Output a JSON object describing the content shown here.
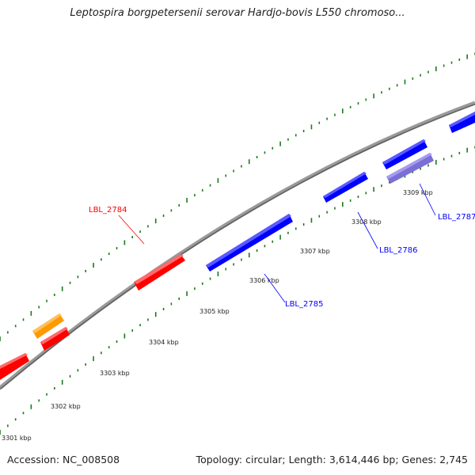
{
  "title": "Leptospira borgpetersenii serovar Hardjo-bovis L550 chromoso...",
  "ticks": [
    "3301 kbp",
    "3302 kbp",
    "3303 kbp",
    "3304 kbp",
    "3305 kbp",
    "3306 kbp",
    "3307 kbp",
    "3308 kbp",
    "3309 kbp"
  ],
  "genes": [
    {
      "label": "LBL_2784",
      "color": "#ff0000",
      "strand": "+"
    },
    {
      "label": "LBL_2785",
      "color": "#0000ff",
      "strand": "-"
    },
    {
      "label": "LBL_2786",
      "color": "#0000ff",
      "strand": "-"
    },
    {
      "label": "LBL_2787",
      "color": "#0000ff",
      "strand": "-"
    }
  ],
  "colors": {
    "forward_gene": "#ff0000",
    "reverse_gene": "#0000ff",
    "orange_feature": "#ff9900",
    "lavender_feature": "#7b6fd6",
    "backbone": "#808080",
    "gc_dots": "#1a7a1a"
  },
  "footer": {
    "accession": "Accession: NC_008508",
    "meta": "Topology: circular; Length: 3,614,446 bp; Genes: 2,745"
  }
}
